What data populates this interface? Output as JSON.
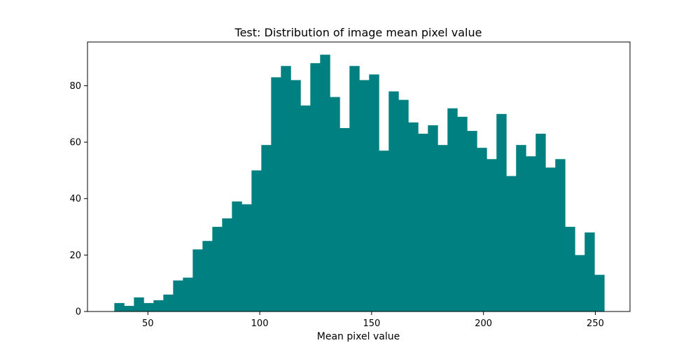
{
  "chart_data": {
    "type": "bar",
    "title": "Test: Distribution of image mean pixel value",
    "xlabel": "Mean pixel value",
    "ylabel": "",
    "color": "#008080",
    "xlim": [
      23,
      265.5
    ],
    "ylim": [
      0,
      95.5
    ],
    "grid": false,
    "legend": "none",
    "xticks": [
      50,
      100,
      150,
      200,
      250
    ],
    "yticks": [
      0,
      20,
      40,
      60,
      80
    ],
    "bins": {
      "start": 35,
      "width": 4.38,
      "values": [
        3,
        2,
        5,
        3,
        4,
        6,
        11,
        12,
        22,
        25,
        30,
        33,
        39,
        38,
        50,
        59,
        83,
        87,
        82,
        73,
        88,
        91,
        76,
        65,
        87,
        82,
        84,
        57,
        78,
        75,
        67,
        63,
        66,
        59,
        72,
        69,
        64,
        58,
        54,
        70,
        48,
        59,
        55,
        63,
        51,
        54,
        30,
        20,
        28,
        13
      ]
    }
  }
}
